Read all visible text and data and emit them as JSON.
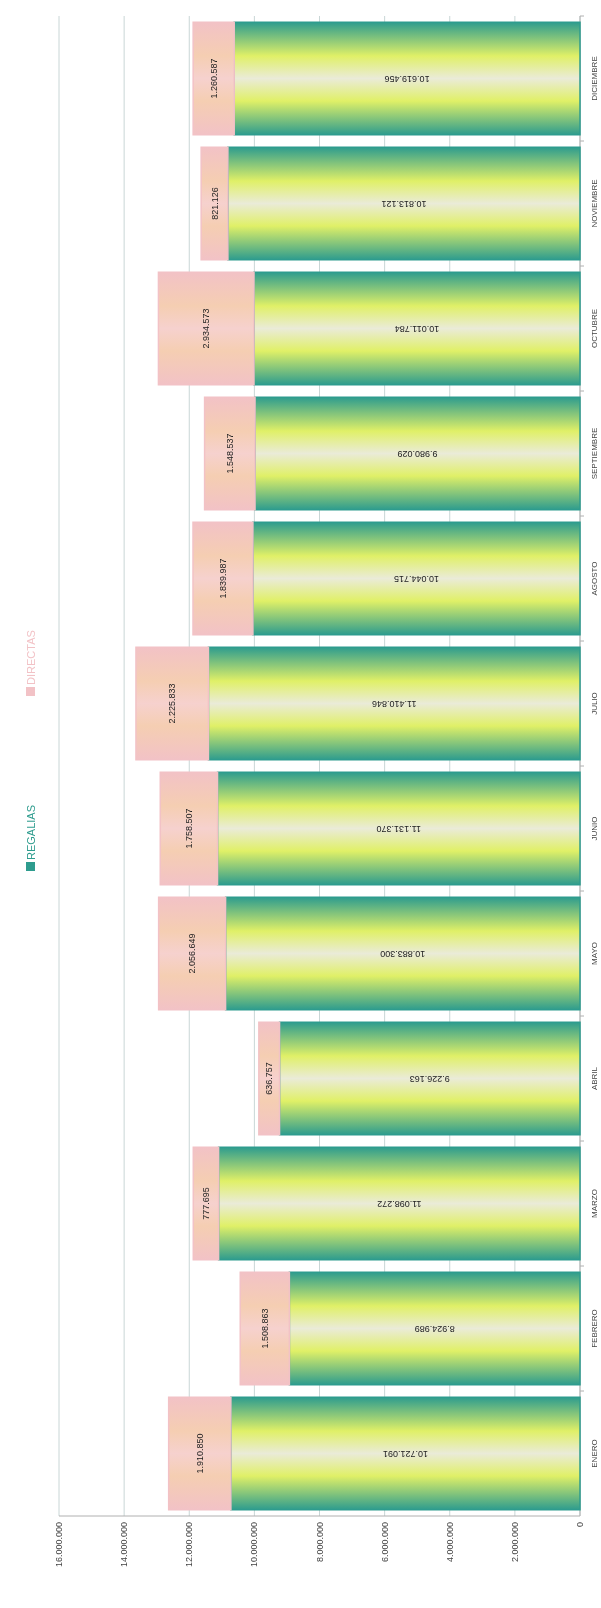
{
  "chart_data": {
    "type": "bar",
    "stacked": true,
    "orientation": "horizontal",
    "categories": [
      "DICIEMBRE",
      "NOVIEMBRE",
      "OCTUBRE",
      "SEPTIEMBRE",
      "AGOSTO",
      "JULIO",
      "JUNIO",
      "MAYO",
      "ABRIL",
      "MARZO",
      "FEBRERO",
      "ENERO"
    ],
    "series": [
      {
        "name": "REGALIAS",
        "color": "#2e9c8e",
        "values": [
          10619456,
          10813121,
          10011784,
          9980029,
          10044715,
          11410846,
          11131370,
          10883300,
          9226163,
          11098272,
          8924989,
          10721091
        ],
        "value_labels": [
          "10.619.456",
          "10.813.121",
          "10.011.784",
          "9.980.029",
          "10.044.715",
          "11.410.846",
          "11.131.370",
          "10.883.300",
          "9.226.163",
          "11.098.272",
          "8.924.989",
          "10.721.091"
        ]
      },
      {
        "name": "DIRECTAS",
        "color": "#f2c2c6",
        "values": [
          1260587,
          821126,
          2934573,
          1548537,
          1839987,
          2225833,
          1758507,
          2056649,
          636757,
          777695,
          1508863,
          1910850
        ],
        "value_labels": [
          "1.260.587",
          "821.126",
          "2.934.573",
          "1.548.537",
          "1.839.987",
          "2.225.833",
          "1.758.507",
          "2.056.649",
          "636.757",
          "777.695",
          "1.508.863",
          "1.910.850"
        ]
      }
    ],
    "xlim": [
      16000000,
      0
    ],
    "xticks": [
      {
        "value": 16000000,
        "label": "16.000.000"
      },
      {
        "value": 14000000,
        "label": "14.000.000"
      },
      {
        "value": 12000000,
        "label": "12.000.000"
      },
      {
        "value": 10000000,
        "label": "10.000.000"
      },
      {
        "value": 8000000,
        "label": "8.000.000"
      },
      {
        "value": 6000000,
        "label": "6.000.000"
      },
      {
        "value": 4000000,
        "label": "4.000.000"
      },
      {
        "value": 2000000,
        "label": "2.000.000"
      },
      {
        "value": 0,
        "label": "0"
      }
    ],
    "grid": "x",
    "legend": "left"
  }
}
